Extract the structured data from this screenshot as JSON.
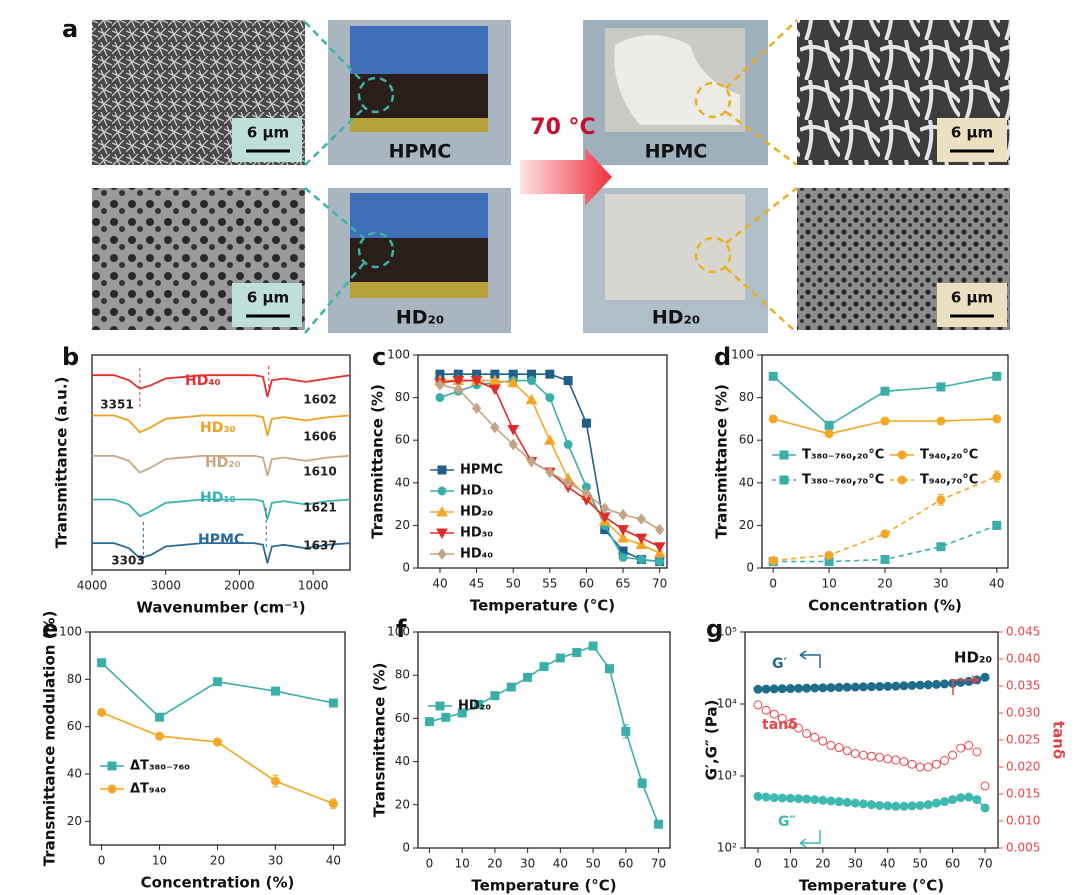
{
  "panel_a": {
    "label": "a",
    "scale_bars": [
      "6 µm",
      "6 µm",
      "6 µm",
      "6 µm"
    ],
    "captions": [
      "HPMC",
      "HD₂₀",
      "HPMC",
      "HD₂₀"
    ],
    "arrow_label": "70 °C"
  },
  "chart_data": [
    {
      "type": "line",
      "panel_label": "b",
      "xlabel": "Wavenumber (cm⁻¹)",
      "ylabel": "Transmittance (a.u.)",
      "x": [
        4000,
        3700,
        3500,
        3350,
        3200,
        3000,
        2500,
        2000,
        1800,
        1680,
        1620,
        1560,
        1400,
        1100,
        800,
        500
      ],
      "xlim": [
        4000,
        500
      ],
      "ylim": [
        0.2,
        6.6
      ],
      "xticks": [
        4000,
        3000,
        2000,
        1000
      ],
      "series": [
        {
          "name": "HD₄₀",
          "color": "#e53030",
          "values": [
            6.0,
            6.0,
            5.85,
            5.6,
            5.7,
            5.9,
            6.0,
            6.0,
            6.0,
            5.95,
            5.35,
            5.85,
            5.9,
            5.8,
            5.9,
            6.0
          ]
        },
        {
          "name": "HD₃₀",
          "color": "#f0a020",
          "values": [
            4.8,
            4.8,
            4.65,
            4.3,
            4.45,
            4.7,
            4.8,
            4.8,
            4.8,
            4.75,
            4.2,
            4.7,
            4.75,
            4.65,
            4.75,
            4.8
          ]
        },
        {
          "name": "HD₂₀",
          "color": "#c8a882",
          "values": [
            3.6,
            3.6,
            3.45,
            3.1,
            3.25,
            3.5,
            3.6,
            3.6,
            3.6,
            3.55,
            3.0,
            3.5,
            3.55,
            3.45,
            3.55,
            3.6
          ]
        },
        {
          "name": "HD₁₀",
          "color": "#3bb3b0",
          "values": [
            2.3,
            2.3,
            2.15,
            1.8,
            1.95,
            2.2,
            2.3,
            2.3,
            2.3,
            2.25,
            1.7,
            2.2,
            2.25,
            2.15,
            2.25,
            2.3
          ]
        },
        {
          "name": "HPMC",
          "color": "#2a6b9a",
          "values": [
            1.0,
            1.0,
            0.85,
            0.55,
            0.65,
            0.9,
            1.0,
            1.0,
            1.0,
            0.95,
            0.4,
            0.9,
            0.95,
            0.85,
            0.95,
            1.0
          ]
        }
      ],
      "annotations": [
        {
          "x": 3351
        },
        {
          "x": 1602
        },
        {
          "x": 1606
        },
        {
          "x": 1610
        },
        {
          "x": 1621
        },
        {
          "x": 1637
        },
        {
          "x": 3303
        }
      ]
    },
    {
      "type": "line",
      "panel_label": "c",
      "xlabel": "Temperature (°C)",
      "ylabel": "Transmittance (%)",
      "x": [
        40,
        42.5,
        45,
        47.5,
        50,
        52.5,
        55,
        57.5,
        60,
        62.5,
        65,
        67.5,
        70
      ],
      "xlim": [
        37,
        71
      ],
      "ylim": [
        0,
        100
      ],
      "xticks": [
        40,
        45,
        50,
        55,
        60,
        65,
        70
      ],
      "yticks": [
        0,
        20,
        40,
        60,
        80,
        100
      ],
      "legend": "lower left",
      "series": [
        {
          "name": "HPMC",
          "color": "#1f5f8b",
          "marker": "square",
          "values": [
            91,
            91,
            91,
            91,
            91,
            91,
            91,
            88,
            68,
            18,
            8,
            4,
            3
          ]
        },
        {
          "name": "HD₁₀",
          "color": "#3aafa9",
          "marker": "circle",
          "values": [
            80,
            83,
            86,
            87,
            88,
            88,
            80,
            58,
            38,
            20,
            5,
            4,
            3
          ]
        },
        {
          "name": "HD₂₀",
          "color": "#f5a623",
          "marker": "triangle-up",
          "values": [
            88,
            88,
            88,
            88,
            87,
            79,
            60,
            42,
            34,
            22,
            14,
            11,
            7
          ]
        },
        {
          "name": "HD₃₀",
          "color": "#e02b2b",
          "marker": "triangle-down",
          "values": [
            87,
            88,
            88,
            84,
            65,
            50,
            45,
            38,
            32,
            24,
            18,
            14,
            10
          ]
        },
        {
          "name": "HD₄₀",
          "color": "#c4a484",
          "marker": "diamond",
          "values": [
            86,
            84,
            75,
            66,
            58,
            50,
            45,
            40,
            35,
            28,
            25,
            23,
            18
          ]
        }
      ]
    },
    {
      "type": "line",
      "panel_label": "d",
      "xlabel": "Concentration (%)",
      "ylabel": "Transmittance (%)",
      "x": [
        0,
        10,
        20,
        30,
        40
      ],
      "xlim": [
        -2,
        42
      ],
      "ylim": [
        0,
        100
      ],
      "xticks": [
        0,
        10,
        20,
        30,
        40
      ],
      "yticks": [
        0,
        20,
        40,
        60,
        80,
        100
      ],
      "legend": "center",
      "series": [
        {
          "name": "T₃₈₀₋₇₆₀,₂₀°C",
          "color": "#3aafa9",
          "marker": "square",
          "values": [
            90,
            67,
            83,
            85,
            90
          ]
        },
        {
          "name": "T₉₄₀,₂₀°C",
          "color": "#f5a623",
          "marker": "circle",
          "values": [
            70,
            63,
            69,
            69,
            70
          ]
        },
        {
          "name": "T₃₈₀₋₇₆₀,₇₀°C",
          "color": "#3aafa9",
          "marker": "square",
          "line_style": "dashed",
          "values": [
            3,
            3,
            4,
            10,
            20
          ],
          "errors": [
            0.5,
            0.5,
            1,
            1,
            1.5
          ]
        },
        {
          "name": "T₉₄₀,₇₀°C",
          "color": "#f5a623",
          "marker": "circle",
          "line_style": "dashed",
          "values": [
            3.5,
            6,
            16,
            32,
            43
          ],
          "errors": [
            0.5,
            0.5,
            1,
            2.5,
            2.5
          ]
        }
      ]
    },
    {
      "type": "line",
      "panel_label": "e",
      "xlabel": "Concentration (%)",
      "ylabel": "Transmittance modulation (%)",
      "x": [
        0,
        10,
        20,
        30,
        40
      ],
      "xlim": [
        -2,
        42
      ],
      "ylim": [
        10,
        100
      ],
      "xticks": [
        0,
        10,
        20,
        30,
        40
      ],
      "yticks": [
        20,
        40,
        60,
        80,
        100
      ],
      "legend": "lower left",
      "series": [
        {
          "name": "ΔT₃₈₀₋₇₆₀",
          "color": "#3aafa9",
          "marker": "square",
          "values": [
            87,
            64,
            79,
            75,
            70
          ],
          "errors": [
            0.5,
            0.5,
            0.5,
            0.5,
            1
          ]
        },
        {
          "name": "ΔT₉₄₀",
          "color": "#f5a623",
          "marker": "circle",
          "values": [
            66,
            56,
            53.5,
            37,
            27.5
          ],
          "errors": [
            0.5,
            0.5,
            1,
            2.5,
            2
          ]
        }
      ]
    },
    {
      "type": "line",
      "panel_label": "f",
      "xlabel": "Temperature (°C)",
      "ylabel": "Transmittance (%)",
      "x": [
        0,
        5,
        10,
        15,
        20,
        25,
        30,
        35,
        40,
        45,
        50,
        55,
        60,
        65,
        70
      ],
      "xlim": [
        -3.5,
        73.5
      ],
      "ylim": [
        0,
        100
      ],
      "xticks": [
        0,
        10,
        20,
        30,
        40,
        50,
        60,
        70
      ],
      "yticks": [
        0,
        20,
        40,
        60,
        80,
        100
      ],
      "legend": "center left",
      "series": [
        {
          "name": "HD₂₀",
          "color": "#3aafa9",
          "marker": "square",
          "values": [
            58.5,
            60.5,
            62.5,
            66.5,
            70.5,
            74.5,
            79,
            84,
            88,
            90.5,
            93.5,
            83,
            54,
            30,
            11
          ],
          "errors": [
            0.5,
            0.5,
            0.5,
            0.5,
            0.5,
            0.5,
            0.5,
            0.5,
            0.5,
            0.5,
            0.5,
            0.8,
            3,
            2,
            0.5
          ]
        }
      ]
    },
    {
      "type": "line",
      "panel_label": "g",
      "xlabel": "Temperature (°C)",
      "ylabel": "G′,G″ (Pa)",
      "y2label": "tanδ",
      "annotation": "HD₂₀",
      "log_y": true,
      "x": [
        0,
        2.5,
        5,
        7.5,
        10,
        12.5,
        15,
        17.5,
        20,
        22.5,
        25,
        27.5,
        30,
        32.5,
        35,
        37.5,
        40,
        42.5,
        45,
        47.5,
        50,
        52.5,
        55,
        57.5,
        60,
        62.5,
        65,
        67.5,
        70
      ],
      "xlim": [
        -4,
        74
      ],
      "xticks": [
        0,
        10,
        20,
        30,
        40,
        50,
        60,
        70
      ],
      "ylim": [
        100,
        100000
      ],
      "yticks": [
        {
          "value": 100,
          "label": "10²"
        },
        {
          "value": 1000,
          "label": "10³"
        },
        {
          "value": 10000,
          "label": "10⁴"
        },
        {
          "value": 100000,
          "label": "10⁵"
        }
      ],
      "y2lim": [
        0.005,
        0.045
      ],
      "y2ticks": [
        0.005,
        {
          "value": 0.01,
          "label": "0.010"
        },
        0.015,
        {
          "value": 0.02,
          "label": "0.020"
        },
        0.025,
        {
          "value": 0.03,
          "label": "0.030"
        },
        0.035,
        {
          "value": 0.04,
          "label": "0.040"
        },
        0.045
      ],
      "series": [
        {
          "name": "G′",
          "color": "#1f6c8c",
          "marker": "circle",
          "values": [
            16000,
            16100,
            16200,
            16300,
            16400,
            16500,
            16600,
            16700,
            16800,
            16900,
            17000,
            17100,
            17200,
            17300,
            17400,
            17500,
            17600,
            17700,
            17900,
            18100,
            18300,
            18500,
            18700,
            19000,
            19400,
            19900,
            20600,
            21600,
            23500
          ]
        },
        {
          "name": "G″",
          "color": "#3fb8b0",
          "marker": "circle",
          "values": [
            520,
            510,
            500,
            495,
            490,
            485,
            480,
            470,
            460,
            450,
            440,
            430,
            420,
            410,
            400,
            390,
            385,
            380,
            380,
            385,
            390,
            400,
            420,
            440,
            470,
            500,
            510,
            470,
            360
          ]
        },
        {
          "name": "tanδ",
          "color": "#e8454a",
          "marker": "open-circle",
          "axis": "y2",
          "values": [
            0.0315,
            0.0305,
            0.0298,
            0.029,
            0.028,
            0.0272,
            0.0262,
            0.0255,
            0.0248,
            0.024,
            0.0236,
            0.023,
            0.0225,
            0.0222,
            0.022,
            0.0218,
            0.0215,
            0.0213,
            0.021,
            0.0205,
            0.02,
            0.02,
            0.0205,
            0.0212,
            0.0222,
            0.0235,
            0.024,
            0.0228,
            0.0165
          ]
        }
      ]
    }
  ]
}
